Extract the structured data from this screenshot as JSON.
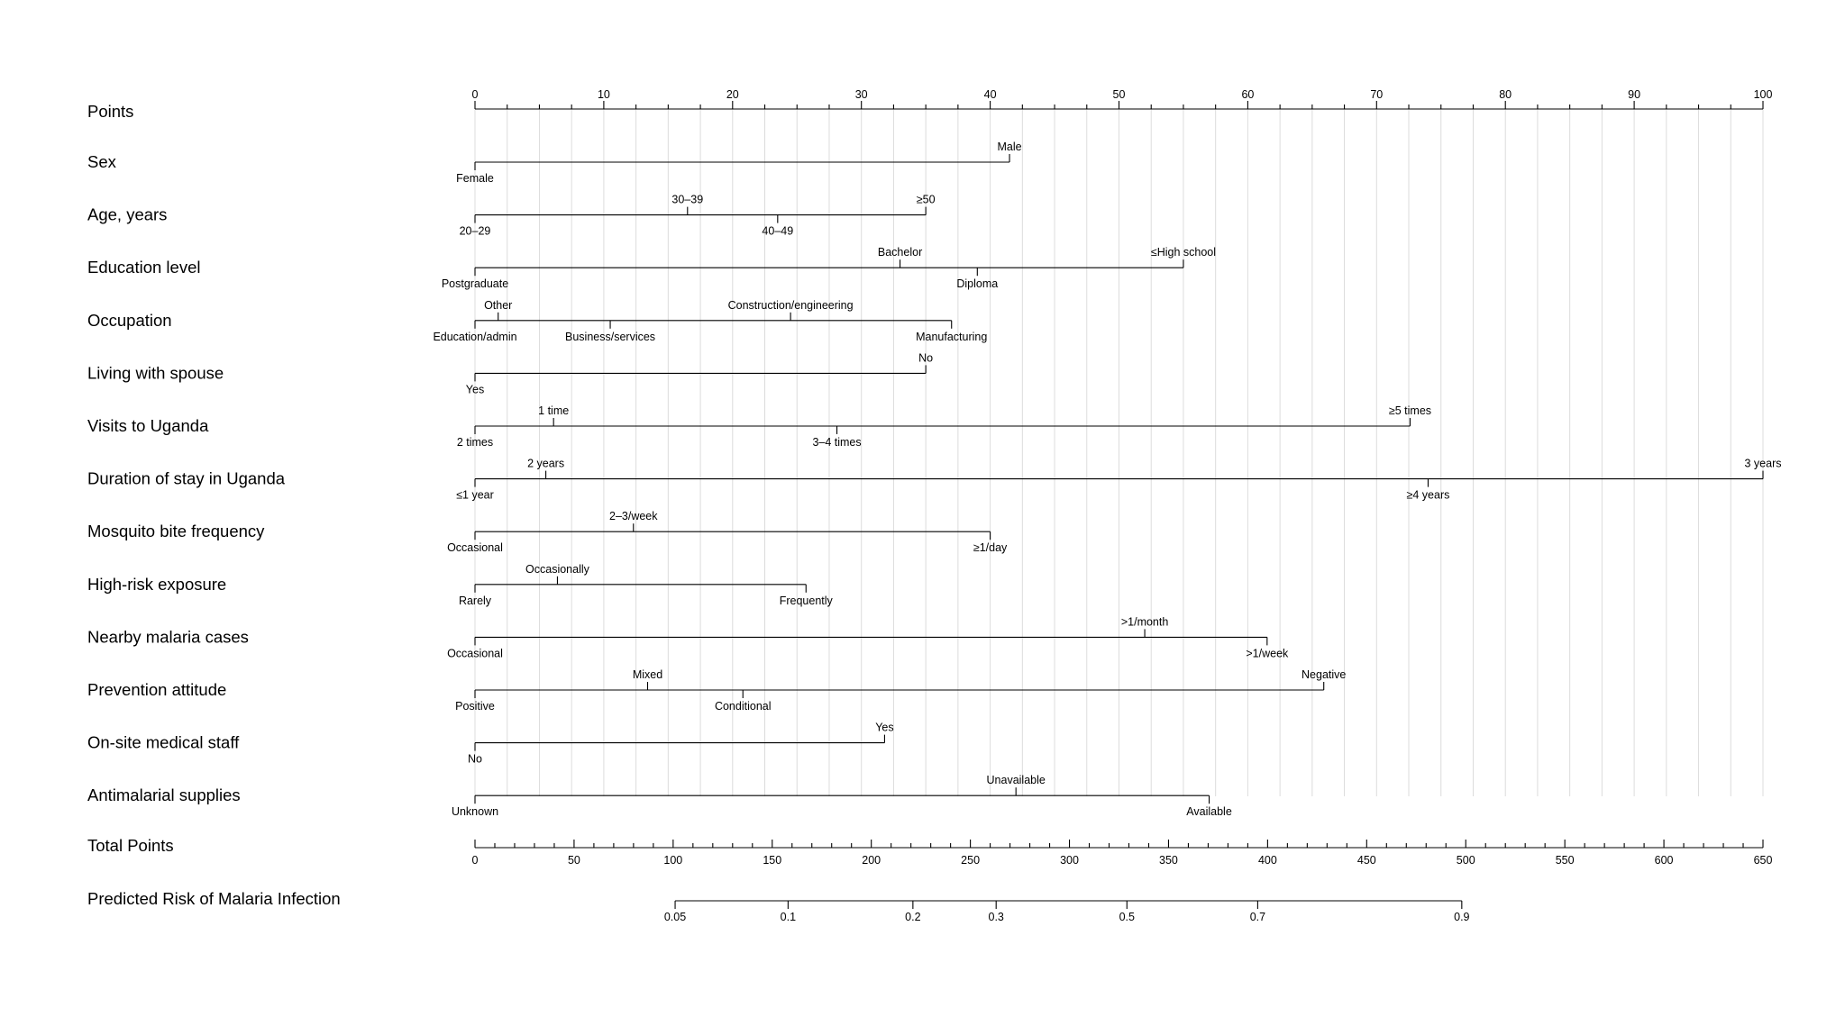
{
  "chart_data": {
    "type": "nomogram",
    "points_axis": {
      "label": "Points",
      "range": [
        0,
        100
      ],
      "major_ticks": [
        0,
        10,
        20,
        30,
        40,
        50,
        60,
        70,
        80,
        90,
        100
      ],
      "minor_step": 2.5
    },
    "variables": [
      {
        "label": "Sex",
        "levels": [
          {
            "name": "Female",
            "points": 0,
            "position": "below"
          },
          {
            "name": "Male",
            "points": 41.5,
            "position": "above"
          }
        ]
      },
      {
        "label": "Age, years",
        "levels": [
          {
            "name": "20–29",
            "points": 0,
            "position": "below"
          },
          {
            "name": "30–39",
            "points": 16.5,
            "position": "above"
          },
          {
            "name": "40–49",
            "points": 23.5,
            "position": "below"
          },
          {
            "name": "≥50",
            "points": 35,
            "position": "above"
          }
        ]
      },
      {
        "label": "Education level",
        "levels": [
          {
            "name": "Postgraduate",
            "points": 0,
            "position": "below"
          },
          {
            "name": "Bachelor",
            "points": 33,
            "position": "above"
          },
          {
            "name": "Diploma",
            "points": 39,
            "position": "below"
          },
          {
            "name": "≤High school",
            "points": 55,
            "position": "above"
          }
        ]
      },
      {
        "label": "Occupation",
        "levels": [
          {
            "name": "Education/admin",
            "points": 0,
            "position": "below"
          },
          {
            "name": "Other",
            "points": 1.8,
            "position": "above"
          },
          {
            "name": "Business/services",
            "points": 10.5,
            "position": "below"
          },
          {
            "name": "Construction/engineering",
            "points": 24.5,
            "position": "above"
          },
          {
            "name": "Manufacturing",
            "points": 37,
            "position": "below"
          }
        ]
      },
      {
        "label": "Living with spouse",
        "levels": [
          {
            "name": "Yes",
            "points": 0,
            "position": "below"
          },
          {
            "name": "No",
            "points": 35,
            "position": "above"
          }
        ]
      },
      {
        "label": "Visits to Uganda",
        "levels": [
          {
            "name": "2 times",
            "points": 0,
            "position": "below"
          },
          {
            "name": "1 time",
            "points": 6.1,
            "position": "above"
          },
          {
            "name": "3–4 times",
            "points": 28.1,
            "position": "below"
          },
          {
            "name": "≥5 times",
            "points": 72.6,
            "position": "above"
          }
        ]
      },
      {
        "label": "Duration of stay in Uganda",
        "levels": [
          {
            "name": "≤1 year",
            "points": 0,
            "position": "below"
          },
          {
            "name": "2 years",
            "points": 5.5,
            "position": "above"
          },
          {
            "name": "≥4 years",
            "points": 74,
            "position": "below"
          },
          {
            "name": "3 years",
            "points": 100,
            "position": "above"
          }
        ]
      },
      {
        "label": "Mosquito bite frequency",
        "levels": [
          {
            "name": "Occasional",
            "points": 0,
            "position": "below"
          },
          {
            "name": "2–3/week",
            "points": 12.3,
            "position": "above"
          },
          {
            "name": "≥1/day",
            "points": 40,
            "position": "below"
          }
        ]
      },
      {
        "label": "High-risk exposure",
        "levels": [
          {
            "name": "Rarely",
            "points": 0,
            "position": "below"
          },
          {
            "name": "Occasionally",
            "points": 6.4,
            "position": "above"
          },
          {
            "name": "Frequently",
            "points": 25.7,
            "position": "below"
          }
        ]
      },
      {
        "label": "Nearby malaria cases",
        "levels": [
          {
            "name": "Occasional",
            "points": 0,
            "position": "below"
          },
          {
            "name": ">1/month",
            "points": 52,
            "position": "above"
          },
          {
            "name": ">1/week",
            "points": 61.5,
            "position": "below"
          }
        ]
      },
      {
        "label": "Prevention attitude",
        "levels": [
          {
            "name": "Positive",
            "points": 0,
            "position": "below"
          },
          {
            "name": "Mixed",
            "points": 13.4,
            "position": "above"
          },
          {
            "name": "Conditional",
            "points": 20.8,
            "position": "below"
          },
          {
            "name": "Negative",
            "points": 65.9,
            "position": "above"
          }
        ]
      },
      {
        "label": "On-site medical staff",
        "levels": [
          {
            "name": "No",
            "points": 0,
            "position": "below"
          },
          {
            "name": "Yes",
            "points": 31.8,
            "position": "above"
          }
        ]
      },
      {
        "label": "Antimalarial supplies",
        "levels": [
          {
            "name": "Unknown",
            "points": 0,
            "position": "below"
          },
          {
            "name": "Unavailable",
            "points": 42,
            "position": "above"
          },
          {
            "name": "Available",
            "points": 57,
            "position": "below"
          }
        ]
      }
    ],
    "total_points_axis": {
      "label": "Total Points",
      "range": [
        0,
        650
      ],
      "major_ticks": [
        0,
        50,
        100,
        150,
        200,
        250,
        300,
        350,
        400,
        450,
        500,
        550,
        600,
        650
      ],
      "minor_step": 10
    },
    "risk_axis": {
      "label": "Predicted Risk of Malaria Infection",
      "ticks": [
        {
          "label": "0.05",
          "total_points": 101
        },
        {
          "label": "0.1",
          "total_points": 158
        },
        {
          "label": "0.2",
          "total_points": 221
        },
        {
          "label": "0.3",
          "total_points": 263
        },
        {
          "label": "0.5",
          "total_points": 329
        },
        {
          "label": "0.7",
          "total_points": 395
        },
        {
          "label": "0.9",
          "total_points": 498
        }
      ]
    },
    "grid": true,
    "colors": {
      "line": "#000000",
      "grid": "#dcdcdc",
      "background": "#ffffff"
    }
  }
}
